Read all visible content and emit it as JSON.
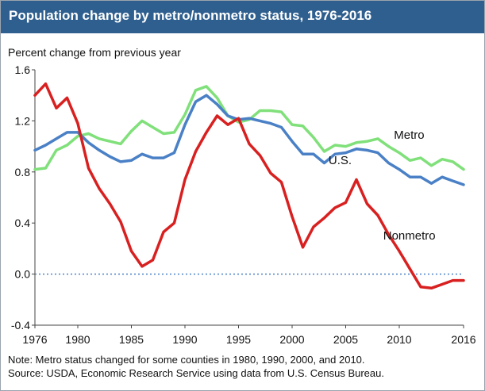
{
  "header": {
    "title": "Population change by metro/nonmetro status, 1976-2016"
  },
  "footer": {
    "note": "Note: Metro status changed for some counties in 1980, 1990, 2000, and 2010.",
    "source": "Source: USDA, Economic Research Service using data from U.S. Census Bureau."
  },
  "chart_data": {
    "type": "line",
    "ylabel": "Percent change from previous year",
    "xlim": [
      1976,
      2016
    ],
    "ylim": [
      -0.4,
      1.6
    ],
    "x_ticks": [
      1976,
      1980,
      1985,
      1990,
      1995,
      2000,
      2005,
      2010,
      2016
    ],
    "y_ticks": [
      -0.4,
      0.0,
      0.4,
      0.8,
      1.2,
      1.6
    ],
    "y_tick_labels": [
      "-0.4",
      "0.0",
      "0.4",
      "0.8",
      "1.2",
      "1.6"
    ],
    "x": [
      1976,
      1977,
      1978,
      1979,
      1980,
      1981,
      1982,
      1983,
      1984,
      1985,
      1986,
      1987,
      1988,
      1989,
      1990,
      1991,
      1992,
      1993,
      1994,
      1995,
      1996,
      1997,
      1998,
      1999,
      2000,
      2001,
      2002,
      2003,
      2004,
      2005,
      2006,
      2007,
      2008,
      2009,
      2010,
      2011,
      2012,
      2013,
      2014,
      2015,
      2016
    ],
    "series": [
      {
        "name": "Metro",
        "color": "#80e07a",
        "values": [
          0.82,
          0.83,
          0.97,
          1.01,
          1.08,
          1.1,
          1.06,
          1.04,
          1.02,
          1.12,
          1.2,
          1.15,
          1.1,
          1.11,
          1.25,
          1.44,
          1.47,
          1.38,
          1.24,
          1.19,
          1.21,
          1.28,
          1.28,
          1.27,
          1.17,
          1.16,
          1.07,
          0.96,
          1.01,
          1.0,
          1.03,
          1.04,
          1.06,
          1.0,
          0.95,
          0.89,
          0.91,
          0.85,
          0.9,
          0.88,
          0.82
        ]
      },
      {
        "name": "U.S.",
        "color": "#4a80c6",
        "values": [
          0.97,
          1.01,
          1.06,
          1.11,
          1.11,
          1.03,
          0.97,
          0.92,
          0.88,
          0.89,
          0.94,
          0.91,
          0.91,
          0.95,
          1.17,
          1.35,
          1.4,
          1.33,
          1.24,
          1.21,
          1.22,
          1.2,
          1.18,
          1.15,
          1.04,
          0.94,
          0.94,
          0.87,
          0.94,
          0.95,
          0.98,
          0.97,
          0.95,
          0.87,
          0.82,
          0.76,
          0.76,
          0.71,
          0.76,
          0.73,
          0.7
        ]
      },
      {
        "name": "Nonmetro",
        "color": "#d92020",
        "values": [
          1.4,
          1.49,
          1.3,
          1.38,
          1.18,
          0.83,
          0.67,
          0.55,
          0.41,
          0.18,
          0.06,
          0.11,
          0.33,
          0.4,
          0.74,
          0.96,
          1.11,
          1.24,
          1.17,
          1.22,
          1.02,
          0.93,
          0.79,
          0.72,
          0.45,
          0.21,
          0.37,
          0.44,
          0.52,
          0.56,
          0.74,
          0.55,
          0.46,
          0.31,
          0.18,
          0.04,
          -0.1,
          -0.11,
          -0.08,
          -0.05,
          -0.05
        ]
      }
    ],
    "annotations": [
      {
        "text": "Metro",
        "x": 2009.5,
        "y": 1.06
      },
      {
        "text": "U.S.",
        "x": 2003.4,
        "y": 0.86
      },
      {
        "text": "Nonmetro",
        "x": 2008.5,
        "y": 0.27
      }
    ],
    "reference_line": {
      "y": 0.0,
      "style": "dotted",
      "color": "#4a80c6"
    },
    "grid": false,
    "legend": "none"
  }
}
